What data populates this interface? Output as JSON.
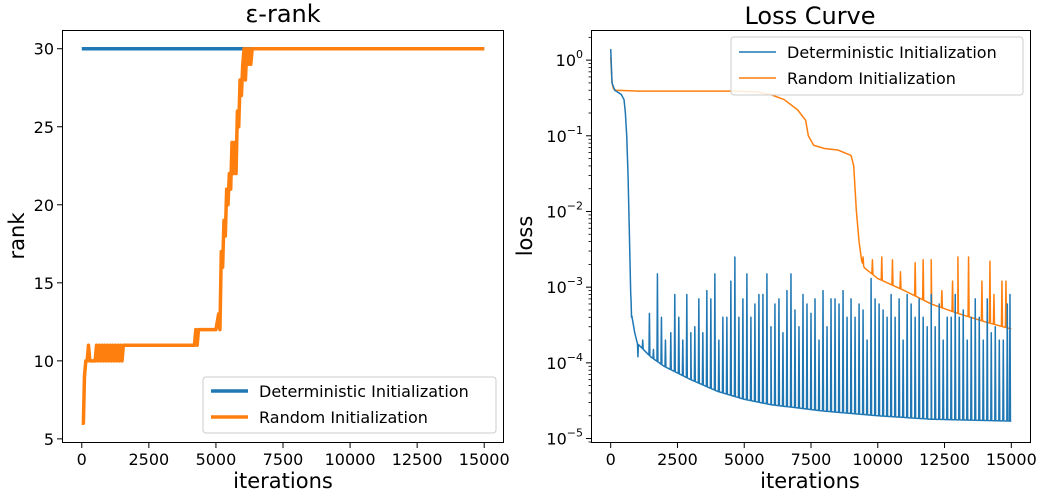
{
  "chart_data": [
    {
      "type": "line",
      "title": "ε-rank",
      "xlabel": "iterations",
      "ylabel": "rank",
      "xlim": [
        -700,
        15700
      ],
      "ylim": [
        4.8,
        31.2
      ],
      "xticks": [
        0,
        2500,
        5000,
        7500,
        10000,
        12500,
        15000
      ],
      "xtick_labels": [
        "0",
        "2500",
        "5000",
        "7500",
        "10000",
        "12500",
        "15000"
      ],
      "yticks": [
        5,
        10,
        15,
        20,
        25,
        30
      ],
      "ytick_labels": [
        "5",
        "10",
        "15",
        "20",
        "25",
        "30"
      ],
      "grid": false,
      "legend_position": "lower-right",
      "series": [
        {
          "name": "Deterministic Initialization",
          "color": "#1f77b4",
          "x": [
            0,
            15000
          ],
          "y": [
            30,
            30
          ]
        },
        {
          "name": "Random Initialization",
          "color": "#ff7f0e",
          "x": [
            0,
            60,
            100,
            150,
            200,
            250,
            300,
            350,
            500,
            550,
            600,
            650,
            700,
            750,
            800,
            850,
            900,
            950,
            1000,
            1050,
            1100,
            1150,
            1200,
            1250,
            1300,
            1350,
            1400,
            1450,
            1500,
            1550,
            1600,
            4200,
            4250,
            4300,
            4350,
            4400,
            5000,
            5100,
            5150,
            5200,
            5250,
            5300,
            5350,
            5400,
            5450,
            5500,
            5550,
            5600,
            5650,
            5700,
            5750,
            5800,
            5850,
            5900,
            5950,
            6000,
            6050,
            6100,
            6150,
            6200,
            6250,
            6300,
            6350,
            6400,
            6500,
            15000
          ],
          "y": [
            6,
            6,
            9,
            10,
            10,
            11,
            10,
            10,
            10,
            11,
            10,
            11,
            10,
            11,
            10,
            11,
            10,
            11,
            10,
            11,
            10,
            11,
            10,
            11,
            10,
            11,
            10,
            11,
            10,
            11,
            11,
            11,
            12,
            11,
            12,
            12,
            12,
            13,
            12,
            17,
            16,
            19,
            18,
            21,
            20,
            22,
            21,
            24,
            22,
            24,
            22,
            26,
            25,
            28,
            27,
            29,
            30,
            28,
            30,
            29,
            30,
            29,
            30,
            30,
            30,
            30
          ]
        }
      ]
    },
    {
      "type": "line",
      "title": "Loss Curve",
      "xlabel": "iterations",
      "ylabel": "loss",
      "yscale": "log",
      "xlim": [
        -700,
        15700
      ],
      "ylim": [
        9e-06,
        2.5
      ],
      "xticks": [
        0,
        2500,
        5000,
        7500,
        10000,
        12500,
        15000
      ],
      "xtick_labels": [
        "0",
        "2500",
        "5000",
        "7500",
        "10000",
        "12500",
        "15000"
      ],
      "yticks": [
        1e-05,
        0.0001,
        0.001,
        0.01,
        0.1,
        1
      ],
      "ytick_labels": [
        {
          "base": "10",
          "exp": "−5"
        },
        {
          "base": "10",
          "exp": "−4"
        },
        {
          "base": "10",
          "exp": "−3"
        },
        {
          "base": "10",
          "exp": "−2"
        },
        {
          "base": "10",
          "exp": "−1"
        },
        {
          "base": "10",
          "exp": "0"
        }
      ],
      "grid": false,
      "legend_position": "top-right",
      "series": [
        {
          "name": "Deterministic Initialization",
          "color": "#1f77b4",
          "baseline": [
            [
              0,
              1.4
            ],
            [
              50,
              0.5
            ],
            [
              150,
              0.4
            ],
            [
              300,
              0.37
            ],
            [
              400,
              0.35
            ],
            [
              500,
              0.3
            ],
            [
              550,
              0.2
            ],
            [
              600,
              0.1
            ],
            [
              650,
              0.03
            ],
            [
              700,
              0.005
            ],
            [
              750,
              0.0008
            ],
            [
              800,
              0.0004
            ],
            [
              900,
              0.00025
            ],
            [
              1000,
              0.00018
            ],
            [
              1500,
              0.00012
            ],
            [
              2000,
              9e-05
            ],
            [
              3000,
              6e-05
            ],
            [
              4000,
              4.2e-05
            ],
            [
              5000,
              3.3e-05
            ],
            [
              6000,
              2.8e-05
            ],
            [
              8000,
              2.3e-05
            ],
            [
              10000,
              2e-05
            ],
            [
              12000,
              1.8e-05
            ],
            [
              15000,
              1.7e-05
            ]
          ],
          "spike_width": 35,
          "spikes": [
            [
              780,
              0.0004
            ],
            [
              900,
              0.00025
            ],
            [
              1020,
              0.00012
            ],
            [
              1200,
              0.0002
            ],
            [
              1450,
              0.00045
            ],
            [
              1600,
              0.00015
            ],
            [
              1750,
              0.0015
            ],
            [
              1900,
              0.0004
            ],
            [
              2050,
              0.0002
            ],
            [
              2250,
              0.00025
            ],
            [
              2400,
              0.0008
            ],
            [
              2550,
              0.0004
            ],
            [
              2700,
              0.0002
            ],
            [
              2850,
              0.0008
            ],
            [
              3000,
              0.00025
            ],
            [
              3150,
              0.0003
            ],
            [
              3300,
              0.0007
            ],
            [
              3450,
              0.00025
            ],
            [
              3600,
              0.0009
            ],
            [
              3750,
              0.0007
            ],
            [
              3900,
              0.0015
            ],
            [
              4050,
              0.0002
            ],
            [
              4200,
              0.0004
            ],
            [
              4350,
              0.0004
            ],
            [
              4500,
              0.0012
            ],
            [
              4650,
              0.0025
            ],
            [
              4800,
              0.0004
            ],
            [
              4950,
              0.0007
            ],
            [
              5100,
              0.0015
            ],
            [
              5250,
              0.0004
            ],
            [
              5400,
              0.0006
            ],
            [
              5550,
              0.0008
            ],
            [
              5700,
              0.0008
            ],
            [
              5850,
              0.0015
            ],
            [
              6000,
              0.0003
            ],
            [
              6150,
              0.0006
            ],
            [
              6300,
              0.0007
            ],
            [
              6450,
              0.00025
            ],
            [
              6600,
              0.0009
            ],
            [
              6750,
              0.0015
            ],
            [
              6900,
              0.0005
            ],
            [
              7050,
              0.0003
            ],
            [
              7200,
              0.0008
            ],
            [
              7350,
              0.0006
            ],
            [
              7500,
              0.00045
            ],
            [
              7650,
              0.0007
            ],
            [
              7800,
              0.0002
            ],
            [
              7950,
              0.0009
            ],
            [
              8100,
              0.0003
            ],
            [
              8250,
              0.0007
            ],
            [
              8400,
              0.0007
            ],
            [
              8550,
              0.0006
            ],
            [
              8700,
              0.0009
            ],
            [
              8850,
              0.0004
            ],
            [
              9000,
              0.0007
            ],
            [
              9150,
              0.0004
            ],
            [
              9300,
              0.0006
            ],
            [
              9450,
              0.0005
            ],
            [
              9600,
              0.0002
            ],
            [
              9750,
              0.0013
            ],
            [
              9900,
              0.0007
            ],
            [
              10050,
              0.0006
            ],
            [
              10200,
              0.0005
            ],
            [
              10350,
              0.0004
            ],
            [
              10500,
              0.0008
            ],
            [
              10650,
              0.0004
            ],
            [
              10800,
              0.0007
            ],
            [
              10950,
              0.0002
            ],
            [
              11100,
              0.0008
            ],
            [
              11250,
              0.0006
            ],
            [
              11400,
              0.0004
            ],
            [
              11550,
              0.0007
            ],
            [
              11700,
              0.0004
            ],
            [
              11850,
              0.0003
            ],
            [
              12000,
              0.0008
            ],
            [
              12150,
              0.0003
            ],
            [
              12300,
              0.0006
            ],
            [
              12450,
              0.0002
            ],
            [
              12600,
              0.0004
            ],
            [
              12750,
              0.0004
            ],
            [
              12900,
              0.0008
            ],
            [
              13050,
              0.0004
            ],
            [
              13200,
              0.0005
            ],
            [
              13350,
              0.0002
            ],
            [
              13500,
              0.0004
            ],
            [
              13650,
              0.0007
            ],
            [
              13800,
              0.0004
            ],
            [
              13950,
              0.0002
            ],
            [
              14100,
              0.0007
            ],
            [
              14250,
              0.00025
            ],
            [
              14400,
              0.0003
            ],
            [
              14550,
              0.0002
            ],
            [
              14700,
              0.0002
            ],
            [
              14850,
              0.0006
            ],
            [
              14950,
              0.0008
            ]
          ]
        },
        {
          "name": "Random Initialization",
          "color": "#ff7f0e",
          "baseline": [
            [
              0,
              1.1
            ],
            [
              50,
              0.5
            ],
            [
              100,
              0.42
            ],
            [
              200,
              0.4
            ],
            [
              1000,
              0.39
            ],
            [
              3000,
              0.39
            ],
            [
              4500,
              0.39
            ],
            [
              5500,
              0.38
            ],
            [
              6000,
              0.35
            ],
            [
              6500,
              0.3
            ],
            [
              7000,
              0.22
            ],
            [
              7300,
              0.16
            ],
            [
              7400,
              0.1
            ],
            [
              7600,
              0.075
            ],
            [
              8000,
              0.068
            ],
            [
              8500,
              0.065
            ],
            [
              9000,
              0.055
            ],
            [
              9100,
              0.04
            ],
            [
              9200,
              0.01
            ],
            [
              9300,
              0.004
            ],
            [
              9400,
              0.0022
            ],
            [
              9500,
              0.0018
            ],
            [
              10000,
              0.0013
            ],
            [
              11000,
              0.0009
            ],
            [
              12000,
              0.0006
            ],
            [
              13000,
              0.00045
            ],
            [
              14000,
              0.00035
            ],
            [
              15000,
              0.00028
            ]
          ],
          "spike_width": 40,
          "spikes": [
            [
              9450,
              0.0025
            ],
            [
              9800,
              0.0023
            ],
            [
              10150,
              0.0025
            ],
            [
              10550,
              0.0023
            ],
            [
              10850,
              0.0016
            ],
            [
              11400,
              0.0021
            ],
            [
              11700,
              0.0023
            ],
            [
              12000,
              0.0023
            ],
            [
              12400,
              0.0009
            ],
            [
              12800,
              0.0012
            ],
            [
              13000,
              0.0025
            ],
            [
              13400,
              0.0025
            ],
            [
              13900,
              0.0012
            ],
            [
              14200,
              0.0022
            ],
            [
              14350,
              0.0008
            ],
            [
              14650,
              0.0012
            ],
            [
              14800,
              0.0012
            ]
          ]
        }
      ]
    }
  ]
}
